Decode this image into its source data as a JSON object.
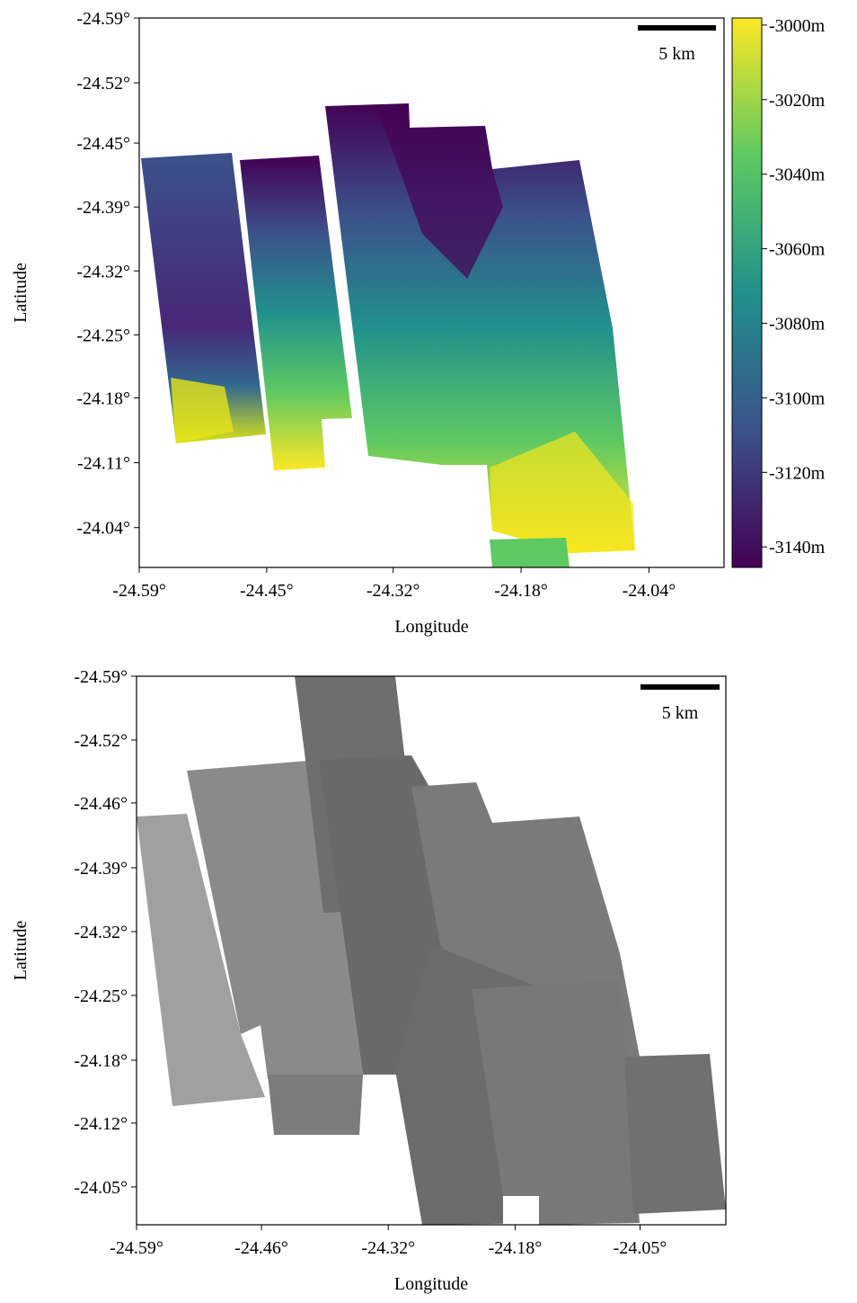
{
  "chart_data": [
    {
      "type": "map",
      "xlabel": "Longitude",
      "ylabel": "Latitude",
      "xlim": [
        -24.59,
        -23.959
      ],
      "ylim": [
        -24.59,
        -23.997
      ],
      "xticks": [
        {
          "value": -24.59,
          "label": "-24.59°"
        },
        {
          "value": -24.4525,
          "label": "-24.45°"
        },
        {
          "value": -24.316,
          "label": "-24.32°"
        },
        {
          "value": -24.178,
          "label": "-24.18°"
        },
        {
          "value": -24.04,
          "label": "-24.04°"
        }
      ],
      "yticks": [
        {
          "value": -24.59,
          "label": "-24.59°"
        },
        {
          "value": -24.52,
          "label": "-24.52°"
        },
        {
          "value": -24.455,
          "label": "-24.45°"
        },
        {
          "value": -24.386,
          "label": "-24.39°"
        },
        {
          "value": -24.317,
          "label": "-24.32°"
        },
        {
          "value": -24.248,
          "label": "-24.25°"
        },
        {
          "value": -24.18,
          "label": "-24.18°"
        },
        {
          "value": -24.11,
          "label": "-24.11°"
        },
        {
          "value": -24.04,
          "label": "-24.04°"
        }
      ],
      "scalebar_label": "5 km",
      "colorbar": {
        "colormap": "viridis",
        "lim": [
          -2998.1,
          -3145.5
        ],
        "ticks": [
          {
            "value": -3000,
            "label": "-3000m"
          },
          {
            "value": -3020,
            "label": "-3020m"
          },
          {
            "value": -3040,
            "label": "-3040m"
          },
          {
            "value": -3060,
            "label": "-3060m"
          },
          {
            "value": -3080,
            "label": "-3080m"
          },
          {
            "value": -3100,
            "label": "-3100m"
          },
          {
            "value": -3120,
            "label": "-3120m"
          },
          {
            "value": -3140,
            "label": "-3140m"
          }
        ]
      }
    },
    {
      "type": "map",
      "xlabel": "Longitude",
      "ylabel": "Latitude",
      "xlim": [
        -24.59,
        -23.958
      ],
      "ylim": [
        -24.59,
        -24.01
      ],
      "xticks": [
        {
          "value": -24.59,
          "label": "-24.59°"
        },
        {
          "value": -24.456,
          "label": "-24.46°"
        },
        {
          "value": -24.32,
          "label": "-24.32°"
        },
        {
          "value": -24.184,
          "label": "-24.18°"
        },
        {
          "value": -24.05,
          "label": "-24.05°"
        }
      ],
      "yticks": [
        {
          "value": -24.59,
          "label": "-24.59°"
        },
        {
          "value": -24.5225,
          "label": "-24.52°"
        },
        {
          "value": -24.456,
          "label": "-24.46°"
        },
        {
          "value": -24.3875,
          "label": "-24.39°"
        },
        {
          "value": -24.32,
          "label": "-24.32°"
        },
        {
          "value": -24.2525,
          "label": "-24.25°"
        },
        {
          "value": -24.184,
          "label": "-24.18°"
        },
        {
          "value": -24.1175,
          "label": "-24.12°"
        },
        {
          "value": -24.05,
          "label": "-24.05°"
        }
      ],
      "scalebar_label": "5 km"
    }
  ]
}
